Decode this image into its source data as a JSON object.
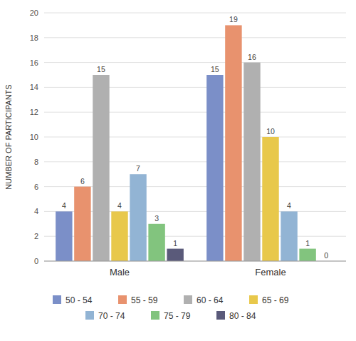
{
  "chart_data": {
    "type": "bar",
    "y_label": "NUMBER OF PARTICIPANTS",
    "categories": [
      "Male",
      "Female"
    ],
    "series": [
      {
        "name": "50 - 54",
        "color": "#7B8FC8",
        "values": [
          4,
          15
        ]
      },
      {
        "name": "55 - 59",
        "color": "#E8926E",
        "values": [
          6,
          19
        ]
      },
      {
        "name": "60 - 64",
        "color": "#B0B0B0",
        "values": [
          15,
          16
        ]
      },
      {
        "name": "65 - 69",
        "color": "#E8C84B",
        "values": [
          4,
          10
        ]
      },
      {
        "name": "70 - 74",
        "color": "#92B4D4",
        "values": [
          7,
          4
        ]
      },
      {
        "name": "75 - 79",
        "color": "#82C47E",
        "values": [
          3,
          1
        ]
      },
      {
        "name": "80 - 84",
        "color": "#5A5A7A",
        "values": [
          1,
          0
        ]
      }
    ],
    "ylim": [
      0,
      20
    ],
    "yticks": [
      0,
      2,
      4,
      6,
      8,
      10,
      12,
      14,
      16,
      18,
      20
    ],
    "grid": true,
    "legend": "bottom",
    "data_labels": true
  }
}
